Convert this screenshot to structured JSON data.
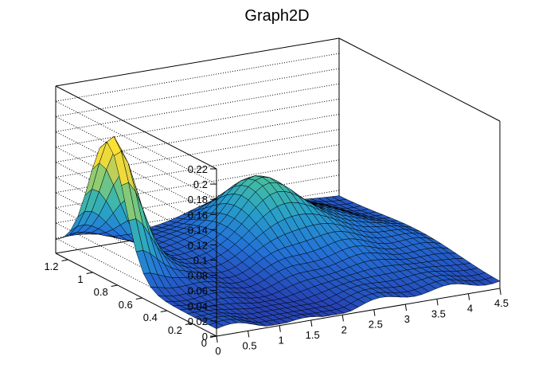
{
  "chart_data": {
    "type": "surface",
    "title": "Graph2D",
    "xlabel": "",
    "ylabel": "",
    "zlabel": "",
    "xlim": [
      0,
      4.5
    ],
    "ylim": [
      0,
      1.3
    ],
    "zlim": [
      0,
      0.22
    ],
    "x_ticks": [
      "0",
      "0.5",
      "1",
      "1.5",
      "2",
      "2.5",
      "3",
      "3.5",
      "4",
      "4.5"
    ],
    "y_ticks": [
      "0",
      "0.2",
      "0.4",
      "0.6",
      "0.8",
      "1",
      "1.2"
    ],
    "z_ticks": [
      "0",
      "0.02",
      "0.04",
      "0.06",
      "0.08",
      "0.1",
      "0.12",
      "0.14",
      "0.16",
      "0.18",
      "0.2",
      "0.22"
    ],
    "grid": true,
    "colormap": "viridis-like",
    "features": [
      {
        "x": 0.0,
        "y": 0.9,
        "z": 0.155
      },
      {
        "x": 1.5,
        "y": 0.15,
        "z": 0.005
      },
      {
        "x": 2.5,
        "y": 0.95,
        "z": 0.08
      }
    ]
  }
}
